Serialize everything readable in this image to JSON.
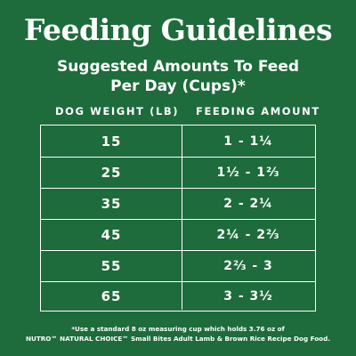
{
  "title": "Feeding Guidelines",
  "subtitle": {
    "line1": "Suggested Amounts To Feed",
    "line2": "Per Day (Cups)*"
  },
  "table": {
    "headers": {
      "weight": "DOG WEIGHT (LB)",
      "amount": "FEEDING AMOUNT"
    },
    "rows": [
      {
        "weight": "15",
        "amount": "1 - 1¼"
      },
      {
        "weight": "25",
        "amount": "1½ - 1⅔"
      },
      {
        "weight": "35",
        "amount": "2 - 2¼"
      },
      {
        "weight": "45",
        "amount": "2¼ - 2⅔"
      },
      {
        "weight": "55",
        "amount": "2⅔ - 3"
      },
      {
        "weight": "65",
        "amount": "3 - 3½"
      }
    ]
  },
  "footnote": {
    "line1": "*Use a standard 8 oz measuring cup which holds 3.76 oz of",
    "line2": "NUTRO™ NATURAL CHOICE™ Small Bites Adult Lamb & Brown Rice Recipe Dog Food."
  },
  "colors": {
    "background": "#1e6b3c",
    "text": "#ffffff"
  }
}
